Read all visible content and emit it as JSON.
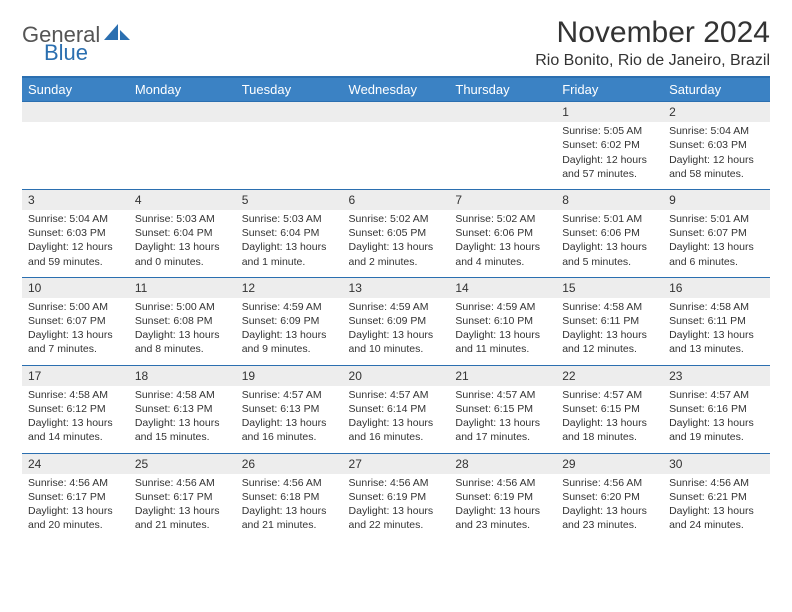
{
  "logo": {
    "part1": "General",
    "part2": "Blue"
  },
  "title": "November 2024",
  "location": "Rio Bonito, Rio de Janeiro, Brazil",
  "colors": {
    "header_bg": "#3b82c4",
    "header_border": "#2b6fb0",
    "daynum_bg": "#ededed",
    "text": "#333333",
    "page_bg": "#ffffff"
  },
  "day_headers": [
    "Sunday",
    "Monday",
    "Tuesday",
    "Wednesday",
    "Thursday",
    "Friday",
    "Saturday"
  ],
  "weeks": [
    [
      null,
      null,
      null,
      null,
      null,
      {
        "num": "1",
        "sunrise": "Sunrise: 5:05 AM",
        "sunset": "Sunset: 6:02 PM",
        "daylight": "Daylight: 12 hours and 57 minutes."
      },
      {
        "num": "2",
        "sunrise": "Sunrise: 5:04 AM",
        "sunset": "Sunset: 6:03 PM",
        "daylight": "Daylight: 12 hours and 58 minutes."
      }
    ],
    [
      {
        "num": "3",
        "sunrise": "Sunrise: 5:04 AM",
        "sunset": "Sunset: 6:03 PM",
        "daylight": "Daylight: 12 hours and 59 minutes."
      },
      {
        "num": "4",
        "sunrise": "Sunrise: 5:03 AM",
        "sunset": "Sunset: 6:04 PM",
        "daylight": "Daylight: 13 hours and 0 minutes."
      },
      {
        "num": "5",
        "sunrise": "Sunrise: 5:03 AM",
        "sunset": "Sunset: 6:04 PM",
        "daylight": "Daylight: 13 hours and 1 minute."
      },
      {
        "num": "6",
        "sunrise": "Sunrise: 5:02 AM",
        "sunset": "Sunset: 6:05 PM",
        "daylight": "Daylight: 13 hours and 2 minutes."
      },
      {
        "num": "7",
        "sunrise": "Sunrise: 5:02 AM",
        "sunset": "Sunset: 6:06 PM",
        "daylight": "Daylight: 13 hours and 4 minutes."
      },
      {
        "num": "8",
        "sunrise": "Sunrise: 5:01 AM",
        "sunset": "Sunset: 6:06 PM",
        "daylight": "Daylight: 13 hours and 5 minutes."
      },
      {
        "num": "9",
        "sunrise": "Sunrise: 5:01 AM",
        "sunset": "Sunset: 6:07 PM",
        "daylight": "Daylight: 13 hours and 6 minutes."
      }
    ],
    [
      {
        "num": "10",
        "sunrise": "Sunrise: 5:00 AM",
        "sunset": "Sunset: 6:07 PM",
        "daylight": "Daylight: 13 hours and 7 minutes."
      },
      {
        "num": "11",
        "sunrise": "Sunrise: 5:00 AM",
        "sunset": "Sunset: 6:08 PM",
        "daylight": "Daylight: 13 hours and 8 minutes."
      },
      {
        "num": "12",
        "sunrise": "Sunrise: 4:59 AM",
        "sunset": "Sunset: 6:09 PM",
        "daylight": "Daylight: 13 hours and 9 minutes."
      },
      {
        "num": "13",
        "sunrise": "Sunrise: 4:59 AM",
        "sunset": "Sunset: 6:09 PM",
        "daylight": "Daylight: 13 hours and 10 minutes."
      },
      {
        "num": "14",
        "sunrise": "Sunrise: 4:59 AM",
        "sunset": "Sunset: 6:10 PM",
        "daylight": "Daylight: 13 hours and 11 minutes."
      },
      {
        "num": "15",
        "sunrise": "Sunrise: 4:58 AM",
        "sunset": "Sunset: 6:11 PM",
        "daylight": "Daylight: 13 hours and 12 minutes."
      },
      {
        "num": "16",
        "sunrise": "Sunrise: 4:58 AM",
        "sunset": "Sunset: 6:11 PM",
        "daylight": "Daylight: 13 hours and 13 minutes."
      }
    ],
    [
      {
        "num": "17",
        "sunrise": "Sunrise: 4:58 AM",
        "sunset": "Sunset: 6:12 PM",
        "daylight": "Daylight: 13 hours and 14 minutes."
      },
      {
        "num": "18",
        "sunrise": "Sunrise: 4:58 AM",
        "sunset": "Sunset: 6:13 PM",
        "daylight": "Daylight: 13 hours and 15 minutes."
      },
      {
        "num": "19",
        "sunrise": "Sunrise: 4:57 AM",
        "sunset": "Sunset: 6:13 PM",
        "daylight": "Daylight: 13 hours and 16 minutes."
      },
      {
        "num": "20",
        "sunrise": "Sunrise: 4:57 AM",
        "sunset": "Sunset: 6:14 PM",
        "daylight": "Daylight: 13 hours and 16 minutes."
      },
      {
        "num": "21",
        "sunrise": "Sunrise: 4:57 AM",
        "sunset": "Sunset: 6:15 PM",
        "daylight": "Daylight: 13 hours and 17 minutes."
      },
      {
        "num": "22",
        "sunrise": "Sunrise: 4:57 AM",
        "sunset": "Sunset: 6:15 PM",
        "daylight": "Daylight: 13 hours and 18 minutes."
      },
      {
        "num": "23",
        "sunrise": "Sunrise: 4:57 AM",
        "sunset": "Sunset: 6:16 PM",
        "daylight": "Daylight: 13 hours and 19 minutes."
      }
    ],
    [
      {
        "num": "24",
        "sunrise": "Sunrise: 4:56 AM",
        "sunset": "Sunset: 6:17 PM",
        "daylight": "Daylight: 13 hours and 20 minutes."
      },
      {
        "num": "25",
        "sunrise": "Sunrise: 4:56 AM",
        "sunset": "Sunset: 6:17 PM",
        "daylight": "Daylight: 13 hours and 21 minutes."
      },
      {
        "num": "26",
        "sunrise": "Sunrise: 4:56 AM",
        "sunset": "Sunset: 6:18 PM",
        "daylight": "Daylight: 13 hours and 21 minutes."
      },
      {
        "num": "27",
        "sunrise": "Sunrise: 4:56 AM",
        "sunset": "Sunset: 6:19 PM",
        "daylight": "Daylight: 13 hours and 22 minutes."
      },
      {
        "num": "28",
        "sunrise": "Sunrise: 4:56 AM",
        "sunset": "Sunset: 6:19 PM",
        "daylight": "Daylight: 13 hours and 23 minutes."
      },
      {
        "num": "29",
        "sunrise": "Sunrise: 4:56 AM",
        "sunset": "Sunset: 6:20 PM",
        "daylight": "Daylight: 13 hours and 23 minutes."
      },
      {
        "num": "30",
        "sunrise": "Sunrise: 4:56 AM",
        "sunset": "Sunset: 6:21 PM",
        "daylight": "Daylight: 13 hours and 24 minutes."
      }
    ]
  ]
}
